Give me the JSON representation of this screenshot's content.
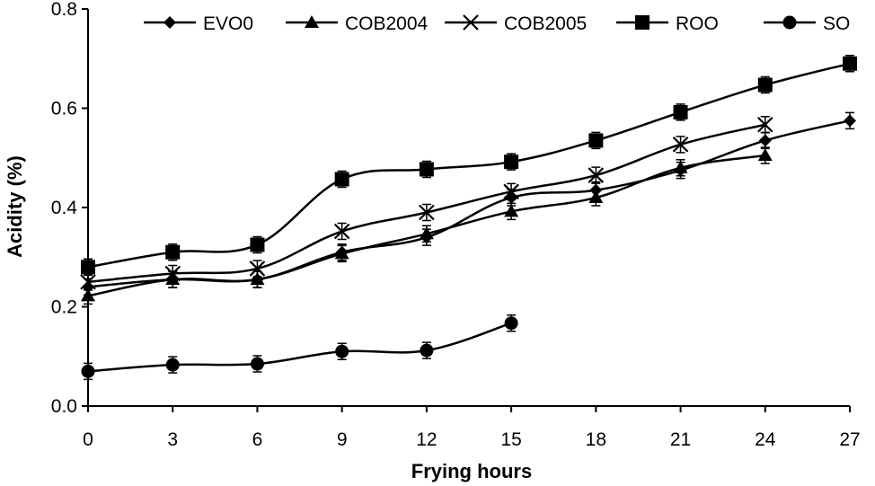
{
  "chart_data": {
    "type": "line",
    "title": "",
    "xlabel": "Frying hours",
    "ylabel": "Acidity (%)",
    "x": [
      0,
      3,
      6,
      9,
      12,
      15,
      18,
      21,
      24,
      27
    ],
    "xlim": [
      0,
      27
    ],
    "ylim": [
      0,
      0.8
    ],
    "x_ticks": [
      "0",
      "3",
      "6",
      "9",
      "12",
      "15",
      "18",
      "21",
      "24",
      "27"
    ],
    "y_ticks": [
      "0.0",
      "0.2",
      "0.4",
      "0.6",
      "0.8"
    ],
    "grid": false,
    "legend_position": "top",
    "series": [
      {
        "name": "EVO0",
        "marker": "diamond",
        "x": [
          0,
          3,
          6,
          9,
          12,
          15,
          18,
          21,
          24,
          27
        ],
        "values": [
          0.24,
          0.255,
          0.255,
          0.31,
          0.34,
          0.42,
          0.435,
          0.475,
          0.535,
          0.575
        ]
      },
      {
        "name": "COB2004",
        "marker": "triangle",
        "x": [
          0,
          3,
          6,
          9,
          12,
          15,
          18,
          21,
          24
        ],
        "values": [
          0.222,
          0.255,
          0.255,
          0.307,
          0.347,
          0.392,
          0.42,
          0.48,
          0.505
        ]
      },
      {
        "name": "COB2005",
        "marker": "x",
        "x": [
          0,
          3,
          6,
          9,
          12,
          15,
          18,
          21,
          24
        ],
        "values": [
          0.25,
          0.267,
          0.277,
          0.352,
          0.39,
          0.432,
          0.465,
          0.527,
          0.567
        ]
      },
      {
        "name": "ROO",
        "marker": "square",
        "x": [
          0,
          3,
          6,
          9,
          12,
          15,
          18,
          21,
          24,
          27
        ],
        "values": [
          0.28,
          0.31,
          0.325,
          0.457,
          0.477,
          0.492,
          0.535,
          0.592,
          0.647,
          0.69
        ]
      },
      {
        "name": "SO",
        "marker": "circle",
        "x": [
          0,
          3,
          6,
          9,
          12,
          15
        ],
        "values": [
          0.07,
          0.083,
          0.085,
          0.11,
          0.112,
          0.167
        ]
      }
    ],
    "line_color": "#000000"
  }
}
